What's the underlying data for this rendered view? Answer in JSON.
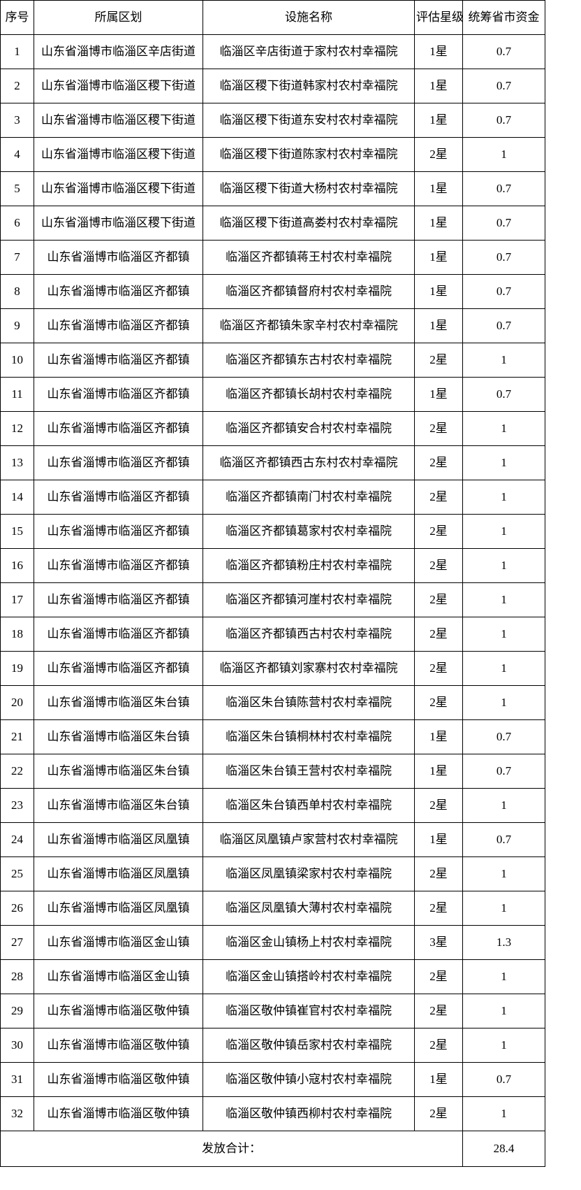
{
  "table": {
    "headers": [
      "序号",
      "所属区划",
      "设施名称",
      "评估星级",
      "统筹省市资金"
    ],
    "rows": [
      [
        "1",
        "山东省淄博市临淄区辛店街道",
        "临淄区辛店街道于家村农村幸福院",
        "1星",
        "0.7"
      ],
      [
        "2",
        "山东省淄博市临淄区稷下街道",
        "临淄区稷下街道韩家村农村幸福院",
        "1星",
        "0.7"
      ],
      [
        "3",
        "山东省淄博市临淄区稷下街道",
        "临淄区稷下街道东安村农村幸福院",
        "1星",
        "0.7"
      ],
      [
        "4",
        "山东省淄博市临淄区稷下街道",
        "临淄区稷下街道陈家村农村幸福院",
        "2星",
        "1"
      ],
      [
        "5",
        "山东省淄博市临淄区稷下街道",
        "临淄区稷下街道大杨村农村幸福院",
        "1星",
        "0.7"
      ],
      [
        "6",
        "山东省淄博市临淄区稷下街道",
        "临淄区稷下街道高娄村农村幸福院",
        "1星",
        "0.7"
      ],
      [
        "7",
        "山东省淄博市临淄区齐都镇",
        "临淄区齐都镇蒋王村农村幸福院",
        "1星",
        "0.7"
      ],
      [
        "8",
        "山东省淄博市临淄区齐都镇",
        "临淄区齐都镇督府村农村幸福院",
        "1星",
        "0.7"
      ],
      [
        "9",
        "山东省淄博市临淄区齐都镇",
        "临淄区齐都镇朱家辛村农村幸福院",
        "1星",
        "0.7"
      ],
      [
        "10",
        "山东省淄博市临淄区齐都镇",
        "临淄区齐都镇东古村农村幸福院",
        "2星",
        "1"
      ],
      [
        "11",
        "山东省淄博市临淄区齐都镇",
        "临淄区齐都镇长胡村农村幸福院",
        "1星",
        "0.7"
      ],
      [
        "12",
        "山东省淄博市临淄区齐都镇",
        "临淄区齐都镇安合村农村幸福院",
        "2星",
        "1"
      ],
      [
        "13",
        "山东省淄博市临淄区齐都镇",
        "临淄区齐都镇西古东村农村幸福院",
        "2星",
        "1"
      ],
      [
        "14",
        "山东省淄博市临淄区齐都镇",
        "临淄区齐都镇南门村农村幸福院",
        "2星",
        "1"
      ],
      [
        "15",
        "山东省淄博市临淄区齐都镇",
        "临淄区齐都镇葛家村农村幸福院",
        "2星",
        "1"
      ],
      [
        "16",
        "山东省淄博市临淄区齐都镇",
        "临淄区齐都镇粉庄村农村幸福院",
        "2星",
        "1"
      ],
      [
        "17",
        "山东省淄博市临淄区齐都镇",
        "临淄区齐都镇河崖村农村幸福院",
        "2星",
        "1"
      ],
      [
        "18",
        "山东省淄博市临淄区齐都镇",
        "临淄区齐都镇西古村农村幸福院",
        "2星",
        "1"
      ],
      [
        "19",
        "山东省淄博市临淄区齐都镇",
        "临淄区齐都镇刘家寨村农村幸福院",
        "2星",
        "1"
      ],
      [
        "20",
        "山东省淄博市临淄区朱台镇",
        "临淄区朱台镇陈营村农村幸福院",
        "2星",
        "1"
      ],
      [
        "21",
        "山东省淄博市临淄区朱台镇",
        "临淄区朱台镇桐林村农村幸福院",
        "1星",
        "0.7"
      ],
      [
        "22",
        "山东省淄博市临淄区朱台镇",
        "临淄区朱台镇王营村农村幸福院",
        "1星",
        "0.7"
      ],
      [
        "23",
        "山东省淄博市临淄区朱台镇",
        "临淄区朱台镇西单村农村幸福院",
        "2星",
        "1"
      ],
      [
        "24",
        "山东省淄博市临淄区凤凰镇",
        "临淄区凤凰镇卢家营村农村幸福院",
        "1星",
        "0.7"
      ],
      [
        "25",
        "山东省淄博市临淄区凤凰镇",
        "临淄区凤凰镇梁家村农村幸福院",
        "2星",
        "1"
      ],
      [
        "26",
        "山东省淄博市临淄区凤凰镇",
        "临淄区凤凰镇大薄村农村幸福院",
        "2星",
        "1"
      ],
      [
        "27",
        "山东省淄博市临淄区金山镇",
        "临淄区金山镇杨上村农村幸福院",
        "3星",
        "1.3"
      ],
      [
        "28",
        "山东省淄博市临淄区金山镇",
        "临淄区金山镇搭岭村农村幸福院",
        "2星",
        "1"
      ],
      [
        "29",
        "山东省淄博市临淄区敬仲镇",
        "临淄区敬仲镇崔官村农村幸福院",
        "2星",
        "1"
      ],
      [
        "30",
        "山东省淄博市临淄区敬仲镇",
        "临淄区敬仲镇岳家村农村幸福院",
        "2星",
        "1"
      ],
      [
        "31",
        "山东省淄博市临淄区敬仲镇",
        "临淄区敬仲镇小寇村农村幸福院",
        "1星",
        "0.7"
      ],
      [
        "32",
        "山东省淄博市临淄区敬仲镇",
        "临淄区敬仲镇西柳村农村幸福院",
        "2星",
        "1"
      ]
    ],
    "footer": {
      "label": "发放合计：",
      "total": "28.4"
    }
  }
}
